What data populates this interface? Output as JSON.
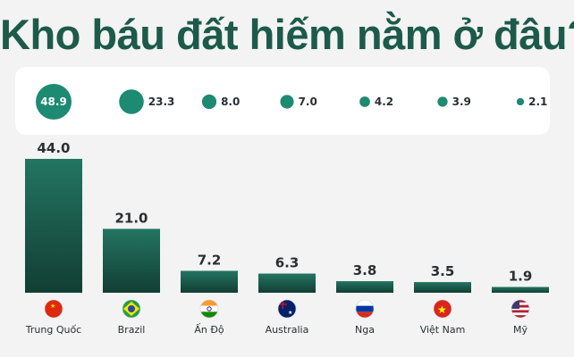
{
  "title": "Kho báu đất hiếm nằm ở đâu?",
  "colors": {
    "bar_top": "#237562",
    "bar_bottom": "#123e33",
    "bubble": "#1d8a72",
    "background": "#f2f3f2"
  },
  "chart_data": [
    {
      "type": "scatter",
      "categories": [
        "Trung Quốc",
        "Brazil",
        "Ấn Độ",
        "Australia",
        "Nga",
        "Việt Nam",
        "Mỹ"
      ],
      "values": [
        48.9,
        23.3,
        8.0,
        7.0,
        4.2,
        3.9,
        2.1
      ],
      "labels": [
        "48.9",
        "23.3",
        "8.0",
        "7.0",
        "4.2",
        "3.9",
        "2.1"
      ]
    },
    {
      "type": "bar",
      "categories": [
        "Trung Quốc",
        "Brazil",
        "Ấn Độ",
        "Australia",
        "Nga",
        "Việt Nam",
        "Mỹ"
      ],
      "values": [
        44.0,
        21.0,
        7.2,
        6.3,
        3.8,
        3.5,
        1.9
      ],
      "labels": [
        "44.0",
        "21.0",
        "7.2",
        "6.3",
        "3.8",
        "3.5",
        "1.9"
      ],
      "flag_icons": [
        "china-flag-icon",
        "brazil-flag-icon",
        "india-flag-icon",
        "australia-flag-icon",
        "russia-flag-icon",
        "vietnam-flag-icon",
        "usa-flag-icon"
      ],
      "ylim": [
        0,
        44.0
      ]
    }
  ]
}
